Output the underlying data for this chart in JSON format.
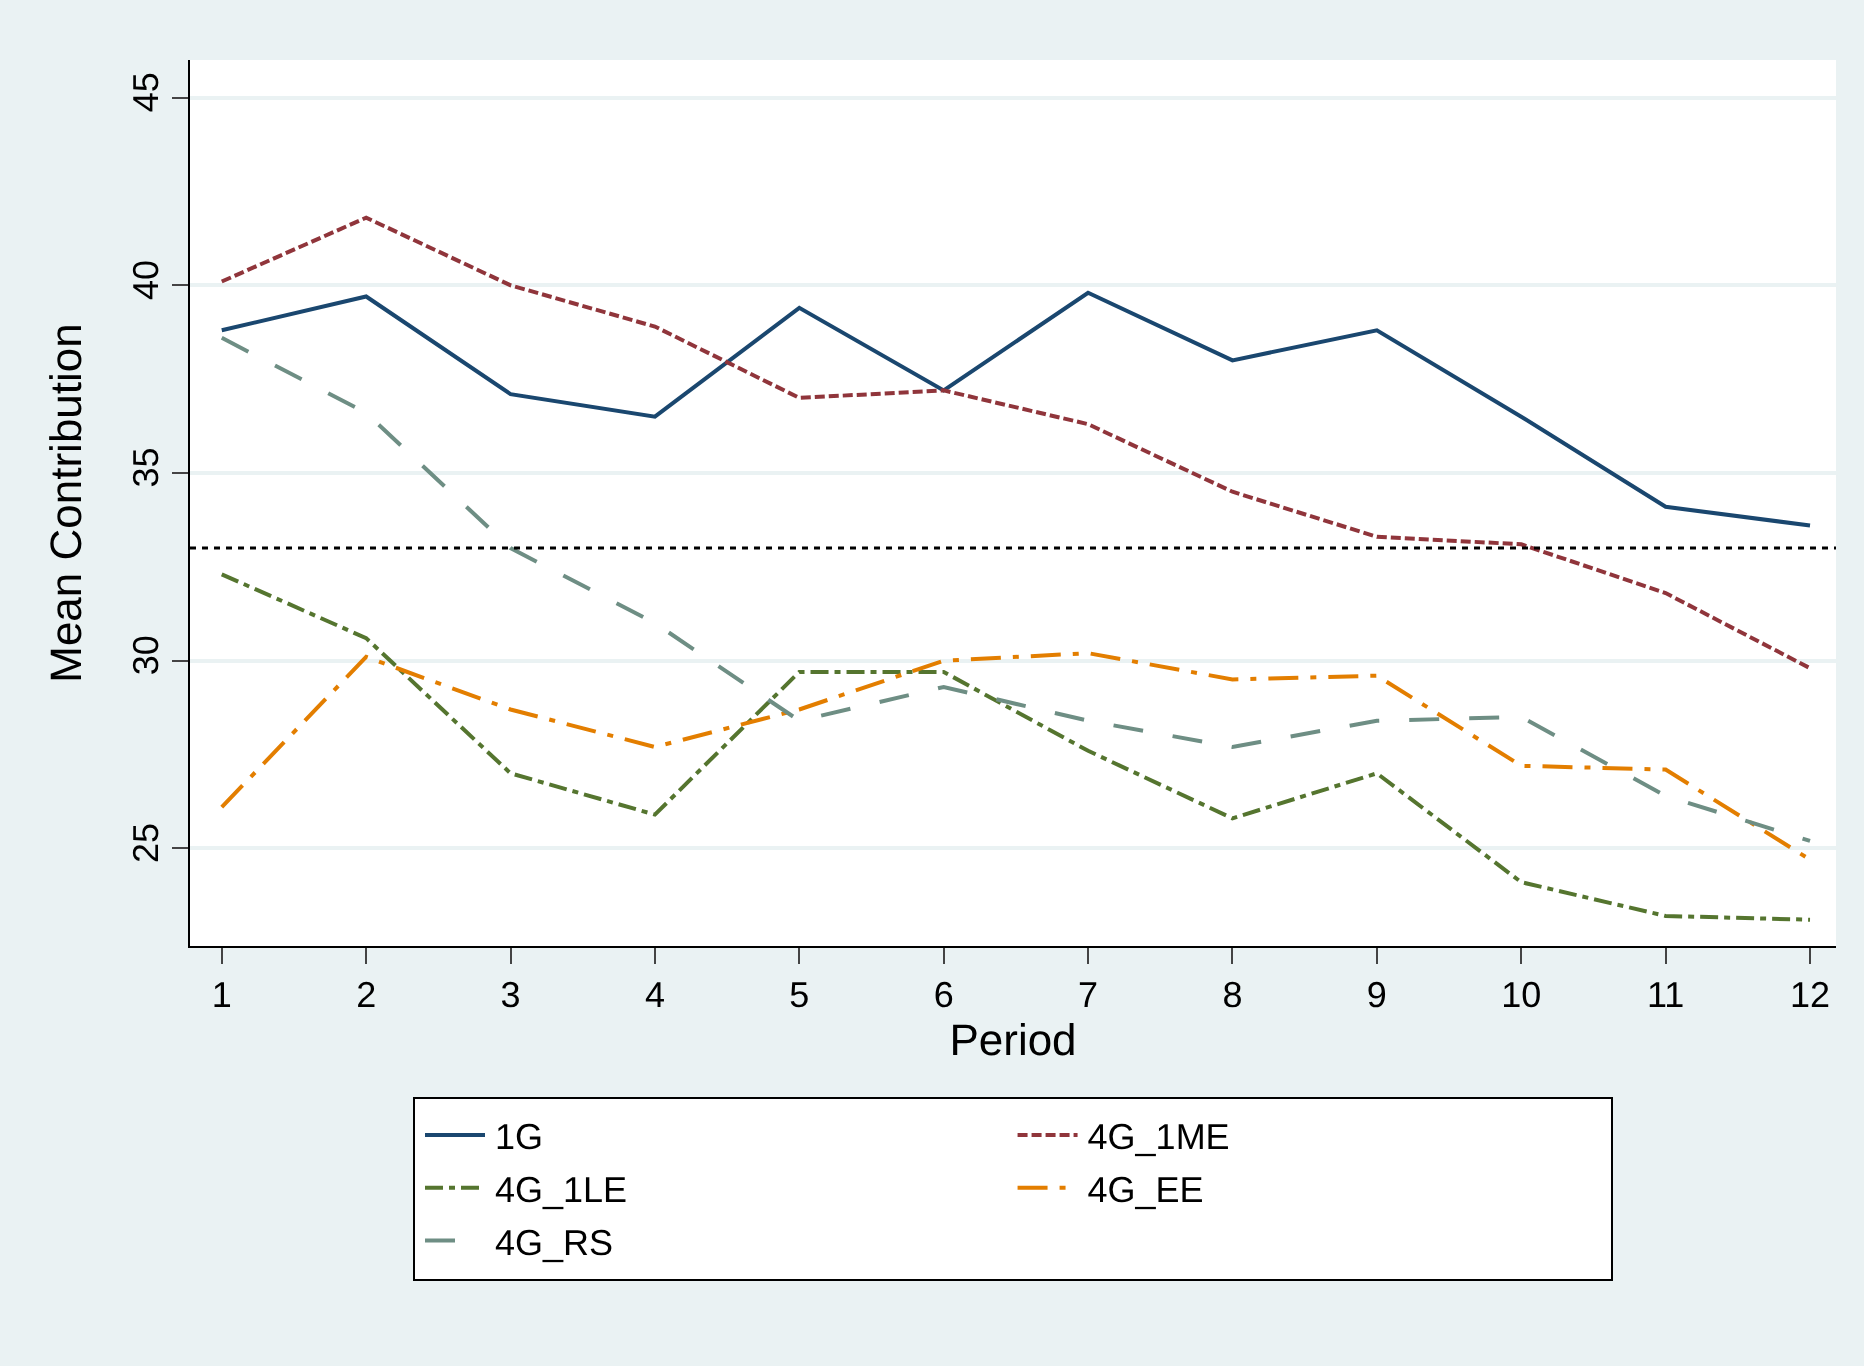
{
  "chart_data": {
    "type": "line",
    "xlabel": "Period",
    "ylabel": "Mean Contribution",
    "x": [
      1,
      2,
      3,
      4,
      5,
      6,
      7,
      8,
      9,
      10,
      11,
      12
    ],
    "series": [
      {
        "name": "1G",
        "color": "#1a476f",
        "line_style": "solid",
        "values": [
          38.8,
          39.7,
          37.1,
          36.5,
          39.4,
          37.2,
          39.8,
          38.0,
          38.8,
          36.5,
          34.1,
          33.6
        ]
      },
      {
        "name": "4G_1ME",
        "color": "#90353b",
        "line_style": "dashed",
        "values": [
          40.1,
          41.8,
          40.0,
          38.9,
          37.0,
          37.2,
          36.3,
          34.5,
          33.3,
          33.1,
          31.8,
          29.8
        ]
      },
      {
        "name": "4G_1LE",
        "color": "#55752f",
        "line_style": "dashdot",
        "values": [
          32.3,
          30.6,
          27.0,
          25.9,
          29.7,
          29.7,
          27.6,
          25.8,
          27.0,
          24.1,
          23.2,
          23.1
        ]
      },
      {
        "name": "4G_EE",
        "color": "#e37e00",
        "line_style": "longdashdot",
        "values": [
          26.1,
          30.1,
          28.7,
          27.7,
          28.7,
          30.0,
          30.2,
          29.5,
          29.6,
          27.2,
          27.1,
          24.7
        ]
      },
      {
        "name": "4G_RS",
        "color": "#6e8e84",
        "line_style": "longdash",
        "values": [
          38.6,
          36.6,
          33.0,
          31.0,
          28.4,
          29.3,
          28.4,
          27.7,
          28.4,
          28.5,
          26.4,
          25.2
        ]
      }
    ],
    "xlim": [
      0.78,
      12.18
    ],
    "xticks": [
      1,
      2,
      3,
      4,
      5,
      6,
      7,
      8,
      9,
      10,
      11,
      12
    ],
    "ylim": [
      22.4,
      46
    ],
    "yticks": [
      25,
      30,
      35,
      40,
      45
    ],
    "ref_lines": [
      {
        "axis": "y",
        "value": 33,
        "color": "#000000",
        "line_style": "dotted"
      }
    ],
    "grid": "y",
    "legend": "bottom"
  }
}
